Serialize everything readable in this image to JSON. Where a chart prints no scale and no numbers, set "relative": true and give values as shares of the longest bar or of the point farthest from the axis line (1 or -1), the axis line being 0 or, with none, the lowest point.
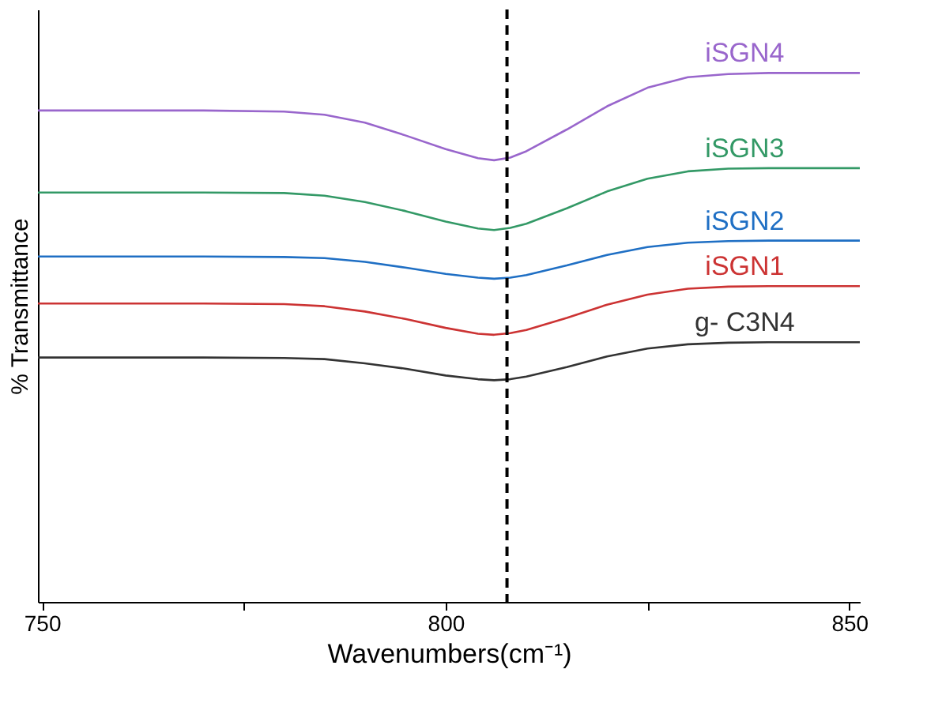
{
  "chart_data": {
    "type": "line",
    "relative": true,
    "xlabel": "Wavenumbers(cm⁻¹)",
    "ylabel": "% Transmittance",
    "x": [
      749.5,
      770,
      780,
      785,
      790,
      795,
      800,
      804,
      806,
      808,
      810,
      815,
      820,
      825,
      830,
      835,
      840,
      851.3
    ],
    "xlim": [
      749.5,
      851.3
    ],
    "xticks": [
      750,
      {
        "value": 775,
        "label": null
      },
      800,
      {
        "value": 825,
        "label": null
      },
      850
    ],
    "grid": false,
    "marker": "none",
    "line_style": "solid",
    "ref_lines": [
      {
        "axis": "x",
        "value": 807.6,
        "color": "#000000",
        "line_style": "dashed"
      }
    ],
    "series": [
      {
        "name": "iSGN4",
        "color": "#9966cc",
        "values": [
          0.929,
          0.929,
          0.927,
          0.921,
          0.906,
          0.882,
          0.856,
          0.839,
          0.835,
          0.84,
          0.852,
          0.893,
          0.937,
          0.972,
          0.992,
          0.998,
          1.0,
          1.0
        ]
      },
      {
        "name": "iSGN3",
        "color": "#339966",
        "values": [
          0.774,
          0.774,
          0.773,
          0.768,
          0.756,
          0.739,
          0.719,
          0.706,
          0.703,
          0.707,
          0.715,
          0.744,
          0.776,
          0.8,
          0.814,
          0.819,
          0.82,
          0.82
        ]
      },
      {
        "name": "iSGN2",
        "color": "#1f6fc4",
        "values": [
          0.653,
          0.653,
          0.652,
          0.65,
          0.643,
          0.632,
          0.62,
          0.613,
          0.611,
          0.613,
          0.618,
          0.636,
          0.656,
          0.671,
          0.679,
          0.682,
          0.683,
          0.683
        ]
      },
      {
        "name": "iSGN1",
        "color": "#cc3333",
        "values": [
          0.564,
          0.564,
          0.563,
          0.559,
          0.549,
          0.535,
          0.518,
          0.507,
          0.505,
          0.508,
          0.514,
          0.537,
          0.562,
          0.581,
          0.592,
          0.596,
          0.597,
          0.597
        ]
      },
      {
        "name": "g- C3N4",
        "color": "#333333",
        "values": [
          0.462,
          0.462,
          0.461,
          0.459,
          0.451,
          0.441,
          0.428,
          0.421,
          0.419,
          0.421,
          0.426,
          0.444,
          0.464,
          0.479,
          0.487,
          0.49,
          0.491,
          0.491
        ]
      }
    ]
  }
}
